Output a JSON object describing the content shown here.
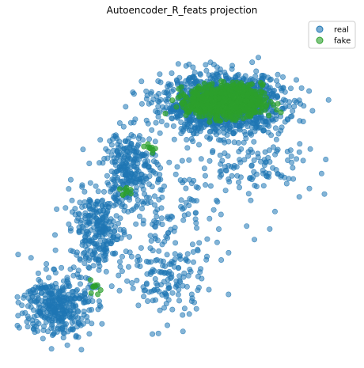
{
  "chart_data": {
    "type": "scatter",
    "title": "Autoencoder_R_feats projection",
    "xlabel": "",
    "ylabel": "",
    "axes_visible": false,
    "grid": false,
    "legend": {
      "placement": "top-right",
      "entries": [
        {
          "label": "real",
          "color": "#1f77b4"
        },
        {
          "label": "fake",
          "color": "#2ca02c"
        }
      ]
    },
    "xlim": [
      0,
      100
    ],
    "ylim": [
      0,
      100
    ],
    "series": [
      {
        "name": "real",
        "color": "#1f77b4",
        "alpha": 0.55,
        "approx_point_count": 2600,
        "clusters": [
          {
            "cx": 0.62,
            "cy": 0.77,
            "sx": 0.09,
            "sy": 0.045,
            "weight": 0.52
          },
          {
            "cx": 0.34,
            "cy": 0.57,
            "sx": 0.04,
            "sy": 0.06,
            "weight": 0.1
          },
          {
            "cx": 0.24,
            "cy": 0.37,
            "sx": 0.04,
            "sy": 0.06,
            "weight": 0.1
          },
          {
            "cx": 0.12,
            "cy": 0.14,
            "sx": 0.05,
            "sy": 0.05,
            "weight": 0.14
          },
          {
            "cx": 0.45,
            "cy": 0.22,
            "sx": 0.06,
            "sy": 0.07,
            "weight": 0.05
          },
          {
            "cx": 0.72,
            "cy": 0.58,
            "sx": 0.09,
            "sy": 0.04,
            "weight": 0.04
          },
          {
            "cx": 0.45,
            "cy": 0.4,
            "sx": 0.12,
            "sy": 0.1,
            "weight": 0.05
          }
        ]
      },
      {
        "name": "fake",
        "color": "#2ca02c",
        "alpha": 0.7,
        "approx_point_count": 900,
        "clusters": [
          {
            "cx": 0.63,
            "cy": 0.78,
            "sx": 0.055,
            "sy": 0.025,
            "weight": 0.97
          },
          {
            "cx": 0.4,
            "cy": 0.63,
            "sx": 0.01,
            "sy": 0.01,
            "weight": 0.01
          },
          {
            "cx": 0.33,
            "cy": 0.5,
            "sx": 0.01,
            "sy": 0.01,
            "weight": 0.01
          },
          {
            "cx": 0.24,
            "cy": 0.2,
            "sx": 0.01,
            "sy": 0.01,
            "weight": 0.01
          }
        ]
      }
    ]
  }
}
